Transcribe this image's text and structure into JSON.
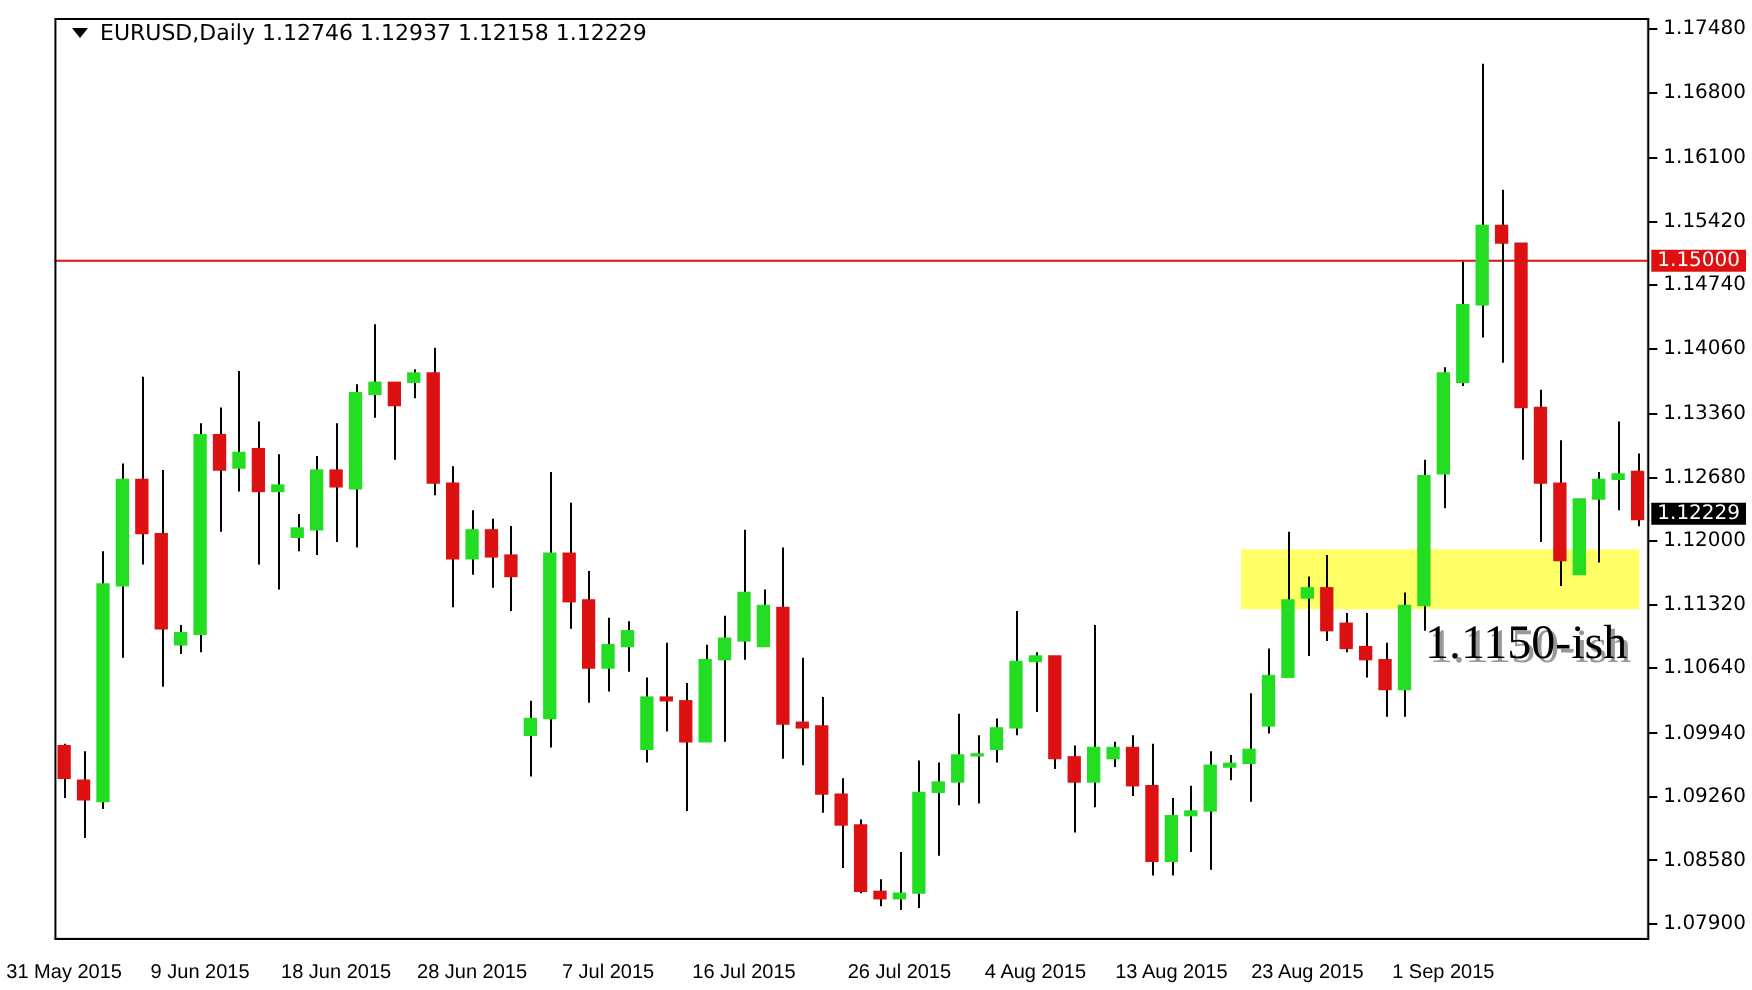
{
  "chart_data": {
    "type": "candlestick",
    "title": "EURUSD,Daily 1.12746 1.12937 1.12158 1.12229",
    "categories": [
      "31 May 2015",
      null,
      null,
      null,
      null,
      null,
      null,
      "9 Jun 2015",
      null,
      null,
      null,
      null,
      null,
      null,
      "18 Jun 2015",
      null,
      null,
      null,
      null,
      null,
      null,
      "28 Jun 2015",
      null,
      null,
      null,
      null,
      null,
      null,
      "7 Jul 2015",
      null,
      null,
      null,
      null,
      null,
      null,
      "16 Jul 2015",
      null,
      null,
      null,
      null,
      null,
      null,
      null,
      "26 Jul 2015",
      null,
      null,
      null,
      null,
      null,
      null,
      "4 Aug 2015",
      null,
      null,
      null,
      null,
      null,
      null,
      "13 Aug 2015",
      null,
      null,
      null,
      null,
      null,
      null,
      "23 Aug 2015",
      null,
      null,
      null,
      null,
      null,
      null,
      "1 Sep 2015",
      null,
      null,
      null,
      null,
      null,
      null,
      null,
      null,
      null,
      null
    ],
    "ohlc": [
      [
        1.0981,
        1.0983,
        1.0925,
        1.0946
      ],
      [
        1.0944,
        1.0975,
        1.0882,
        1.0923
      ],
      [
        1.0921,
        1.1189,
        1.0913,
        1.1154
      ],
      [
        1.1152,
        1.1283,
        1.1075,
        1.1266
      ],
      [
        1.1266,
        1.1376,
        1.1175,
        1.1208
      ],
      [
        1.1208,
        1.1276,
        1.1044,
        1.1106
      ],
      [
        1.1089,
        1.111,
        1.1079,
        1.1102
      ],
      [
        1.11,
        1.1326,
        1.1081,
        1.1314
      ],
      [
        1.1314,
        1.1343,
        1.121,
        1.1276
      ],
      [
        1.1278,
        1.1382,
        1.1253,
        1.1295
      ],
      [
        1.1299,
        1.1328,
        1.1175,
        1.1253
      ],
      [
        1.1253,
        1.1293,
        1.1148,
        1.126
      ],
      [
        1.1204,
        1.1229,
        1.1189,
        1.1214
      ],
      [
        1.1212,
        1.1291,
        1.1185,
        1.1276
      ],
      [
        1.1276,
        1.1326,
        1.1199,
        1.1258
      ],
      [
        1.1256,
        1.1368,
        1.1193,
        1.1359
      ],
      [
        1.1357,
        1.1432,
        1.1332,
        1.137
      ],
      [
        1.137,
        1.137,
        1.1287,
        1.1345
      ],
      [
        1.137,
        1.1384,
        1.1353,
        1.138
      ],
      [
        1.138,
        1.1407,
        1.1249,
        1.1262
      ],
      [
        1.1262,
        1.128,
        1.1129,
        1.1181
      ],
      [
        1.1181,
        1.1233,
        1.1164,
        1.1212
      ],
      [
        1.1212,
        1.1224,
        1.115,
        1.1183
      ],
      [
        1.1185,
        1.1216,
        1.1125,
        1.1162
      ],
      [
        1.0992,
        1.1029,
        1.0948,
        1.101
      ],
      [
        1.101,
        1.1274,
        1.0979,
        1.1187
      ],
      [
        1.1187,
        1.1241,
        1.1106,
        1.1135
      ],
      [
        1.1137,
        1.1168,
        1.1027,
        1.1064
      ],
      [
        1.1064,
        1.1118,
        1.1039,
        1.1089
      ],
      [
        1.1087,
        1.1114,
        1.106,
        1.1104
      ],
      [
        1.0977,
        1.1054,
        1.0963,
        1.1033
      ],
      [
        1.1033,
        1.1091,
        1.0996,
        1.1029
      ],
      [
        1.1029,
        1.1048,
        1.0911,
        1.0985
      ],
      [
        1.0985,
        1.1089,
        1.0985,
        1.1073
      ],
      [
        1.1073,
        1.112,
        1.0985,
        1.1096
      ],
      [
        1.1093,
        1.1212,
        1.1073,
        1.1145
      ],
      [
        1.1087,
        1.1148,
        1.1087,
        1.1131
      ],
      [
        1.1129,
        1.1193,
        1.0967,
        1.1004
      ],
      [
        1.1006,
        1.1075,
        1.096,
        1.1
      ],
      [
        1.1002,
        1.1033,
        1.0909,
        1.0929
      ],
      [
        1.0929,
        1.0946,
        1.085,
        1.0896
      ],
      [
        1.0896,
        1.0902,
        1.0823,
        1.0825
      ],
      [
        1.0825,
        1.0838,
        1.0809,
        1.0817
      ],
      [
        1.0817,
        1.0867,
        1.0805,
        1.0823
      ],
      [
        1.0823,
        1.0965,
        1.0807,
        1.0931
      ],
      [
        1.0931,
        1.0963,
        1.0863,
        1.0942
      ],
      [
        1.0942,
        1.1015,
        1.0917,
        1.0971
      ],
      [
        1.097,
        1.0992,
        1.0919,
        1.0971
      ],
      [
        1.0977,
        1.101,
        1.0963,
        1.1
      ],
      [
        1.1,
        1.1125,
        1.0992,
        1.1071
      ],
      [
        1.1071,
        1.1081,
        1.1017,
        1.1077
      ],
      [
        1.1077,
        1.1077,
        1.0956,
        1.0967
      ],
      [
        1.0969,
        1.0981,
        1.0888,
        1.0942
      ],
      [
        1.0942,
        1.111,
        1.0915,
        1.0979
      ],
      [
        1.0967,
        1.0985,
        1.0958,
        1.0979
      ],
      [
        1.0979,
        1.0992,
        1.0927,
        1.0938
      ],
      [
        1.0938,
        1.0983,
        1.0842,
        1.0857
      ],
      [
        1.0857,
        1.0925,
        1.0842,
        1.0906
      ],
      [
        1.0906,
        1.0938,
        1.0867,
        1.0911
      ],
      [
        1.0911,
        1.0975,
        1.0848,
        1.096
      ],
      [
        1.0958,
        1.0971,
        1.0944,
        1.0962
      ],
      [
        1.0962,
        1.1037,
        1.0921,
        1.0977
      ],
      [
        1.1002,
        1.1085,
        1.0994,
        1.1056
      ],
      [
        1.1054,
        1.121,
        1.1054,
        1.1137
      ],
      [
        1.1139,
        1.1162,
        1.1077,
        1.115
      ],
      [
        1.115,
        1.1185,
        1.1093,
        1.1104
      ],
      [
        1.1112,
        1.1123,
        1.1081,
        1.1085
      ],
      [
        1.1087,
        1.1123,
        1.1054,
        1.1073
      ],
      [
        1.1073,
        1.1091,
        1.1012,
        1.1041
      ],
      [
        1.1041,
        1.1145,
        1.1012,
        1.1131
      ],
      [
        1.1131,
        1.1287,
        1.1104,
        1.127
      ],
      [
        1.1272,
        1.1386,
        1.1235,
        1.138
      ],
      [
        1.137,
        1.1499,
        1.1366,
        1.1453
      ],
      [
        1.1453,
        1.1711,
        1.1418,
        1.1538
      ],
      [
        1.1538,
        1.1576,
        1.1391,
        1.1519
      ],
      [
        1.1519,
        1.1519,
        1.1287,
        1.1343
      ],
      [
        1.1343,
        1.1362,
        1.1199,
        1.1262
      ],
      [
        1.1262,
        1.1308,
        1.1152,
        1.1179
      ],
      [
        1.1164,
        1.1245,
        1.1164,
        1.1245
      ],
      [
        1.1245,
        1.1274,
        1.1177,
        1.1266
      ],
      [
        1.1266,
        1.1328,
        1.1233,
        1.1272
      ],
      [
        1.12746,
        1.12937,
        1.12158,
        1.12229
      ]
    ],
    "colors": [
      "#dd1111",
      "#dd1111",
      "#22dd22",
      "#22dd22",
      "#dd1111",
      "#dd1111",
      "#22dd22",
      "#22dd22",
      "#dd1111",
      "#22dd22",
      "#dd1111",
      "#22dd22",
      "#22dd22",
      "#22dd22",
      "#dd1111",
      "#22dd22",
      "#22dd22",
      "#dd1111",
      "#22dd22",
      "#dd1111",
      "#dd1111",
      "#22dd22",
      "#dd1111",
      "#dd1111",
      "#22dd22",
      "#22dd22",
      "#dd1111",
      "#dd1111",
      "#22dd22",
      "#22dd22",
      "#22dd22",
      "#dd1111",
      "#dd1111",
      "#22dd22",
      "#22dd22",
      "#22dd22",
      "#22dd22",
      "#dd1111",
      "#dd1111",
      "#dd1111",
      "#dd1111",
      "#dd1111",
      "#dd1111",
      "#22dd22",
      "#22dd22",
      "#22dd22",
      "#22dd22",
      "#22dd22",
      "#22dd22",
      "#22dd22",
      "#22dd22",
      "#dd1111",
      "#dd1111",
      "#22dd22",
      "#22dd22",
      "#dd1111",
      "#dd1111",
      "#22dd22",
      "#22dd22",
      "#22dd22",
      "#22dd22",
      "#22dd22",
      "#22dd22",
      "#22dd22",
      "#22dd22",
      "#dd1111",
      "#dd1111",
      "#dd1111",
      "#dd1111",
      "#22dd22",
      "#22dd22",
      "#22dd22",
      "#22dd22",
      "#22dd22",
      "#dd1111",
      "#dd1111",
      "#dd1111",
      "#dd1111",
      "#22dd22",
      "#22dd22",
      "#22dd22",
      "#dd1111"
    ],
    "ylim": [
      1.0775,
      1.176
    ],
    "yticks": [
      {
        "value": 1.079,
        "label": "1.07900"
      },
      {
        "value": 1.0858,
        "label": "1.08580"
      },
      {
        "value": 1.0926,
        "label": "1.09260"
      },
      {
        "value": 1.0994,
        "label": "1.09940"
      },
      {
        "value": 1.1064,
        "label": "1.10640"
      },
      {
        "value": 1.1132,
        "label": "1.11320"
      },
      {
        "value": 1.12,
        "label": "1.12000"
      },
      {
        "value": 1.1268,
        "label": "1.12680"
      },
      {
        "value": 1.1336,
        "label": "1.13360"
      },
      {
        "value": 1.1406,
        "label": "1.14060"
      },
      {
        "value": 1.1474,
        "label": "1.14740"
      },
      {
        "value": 1.1542,
        "label": "1.15420"
      },
      {
        "value": 1.161,
        "label": "1.16100"
      },
      {
        "value": 1.168,
        "label": "1.16800"
      },
      {
        "value": 1.1748,
        "label": "1.17480"
      }
    ],
    "grid": false,
    "legend": false,
    "ref_lines": [
      {
        "axis": "y",
        "value": 1.15,
        "label": "1.15000",
        "color": "#e01010"
      }
    ],
    "bands": [
      {
        "axis": "y",
        "from": 1.1127,
        "to": 1.1191,
        "label": "1.1150-ish",
        "color": "#ffff66"
      }
    ],
    "annotations": [
      "1.12229"
    ]
  }
}
